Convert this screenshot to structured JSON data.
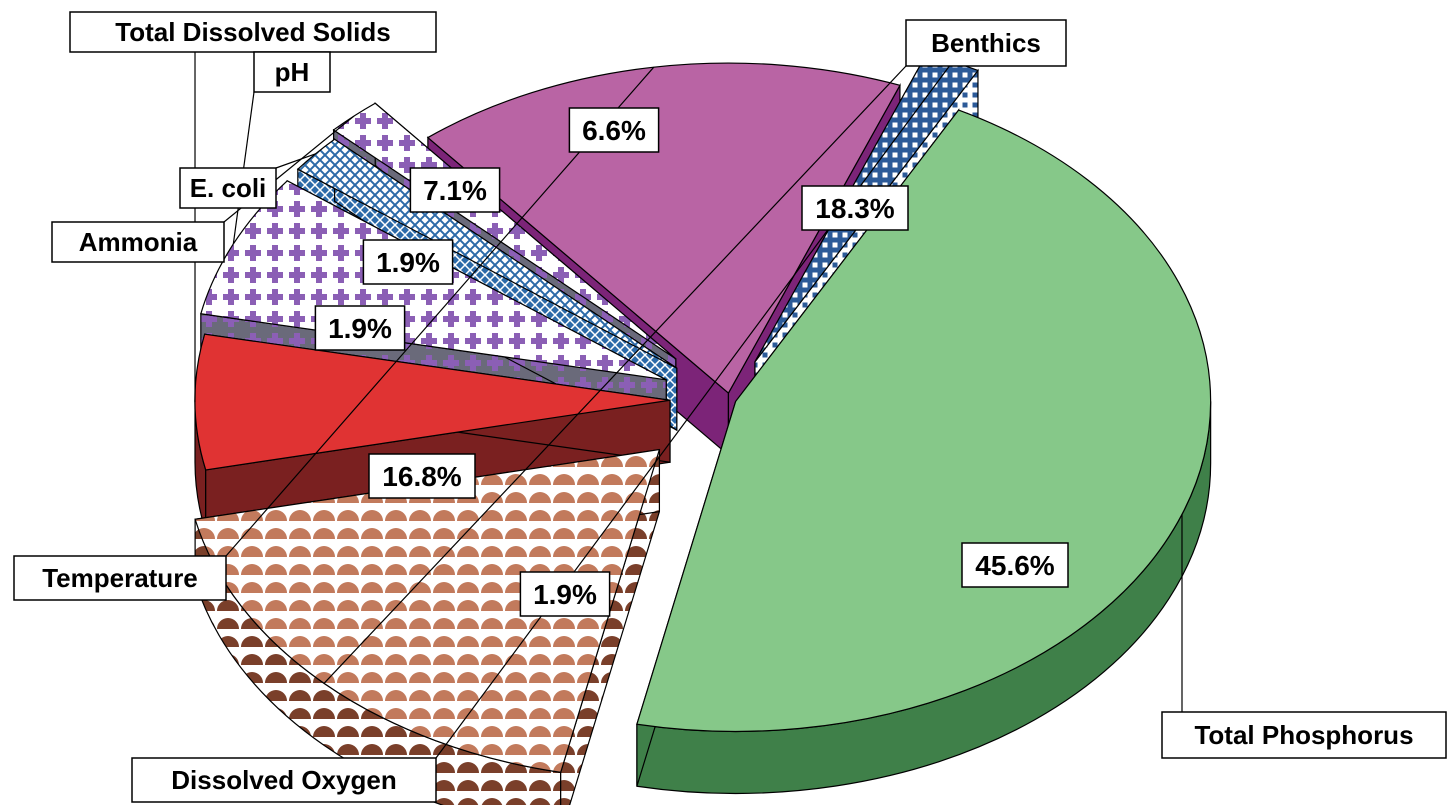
{
  "chart_data": {
    "type": "pie",
    "style": "3d-exploded",
    "title": "",
    "slices": [
      {
        "name": "Total Phosphorus",
        "value": 45.6,
        "label": "45.6%",
        "color": "#86c889",
        "side_color": "#3f8049",
        "pattern": "solid"
      },
      {
        "name": "Benthics",
        "value": 18.3,
        "label": "18.3%",
        "color": "#c27a5c",
        "side_color": "#7a3f2a",
        "pattern": "scallop"
      },
      {
        "name": "Total Dissolved Solids",
        "value": 6.6,
        "label": "6.6%",
        "color": "#e03333",
        "side_color": "#7a2020",
        "pattern": "solid"
      },
      {
        "name": "pH",
        "value": 7.1,
        "label": "7.1%",
        "color": "#8b5fb5",
        "side_color": "#6a6a7a",
        "pattern": "plus"
      },
      {
        "name": "E. coli",
        "value": 1.9,
        "label": "1.9%",
        "color": "#2c6aa8",
        "side_color": "#2c6aa8",
        "pattern": "diagonal-grid"
      },
      {
        "name": "Ammonia",
        "value": 1.9,
        "label": "1.9%",
        "color": "#8b5fb5",
        "side_color": "#6a6a7a",
        "pattern": "plus"
      },
      {
        "name": "Temperature",
        "value": 16.8,
        "label": "16.8%",
        "color": "#b964a4",
        "side_color": "#7c2478",
        "pattern": "solid"
      },
      {
        "name": "Dissolved Oxygen",
        "value": 1.9,
        "label": "1.9%",
        "color": "#2c5a98",
        "side_color": "#2c5a98",
        "pattern": "square-grid"
      }
    ],
    "legend": "none"
  }
}
